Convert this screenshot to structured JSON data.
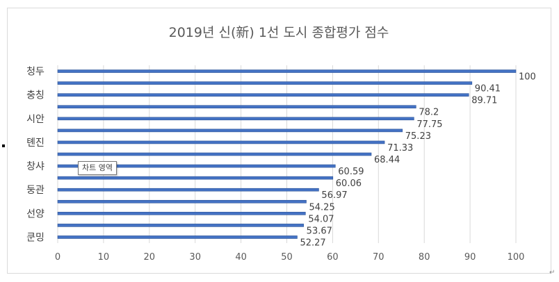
{
  "chart_data": {
    "type": "bar",
    "orientation": "horizontal",
    "title": "2019년 신(新)  1선 도시 종합평가 점수",
    "categories": [
      "청두",
      "",
      "충칭",
      "",
      "시안",
      "",
      "톈진",
      "",
      "창샤",
      "",
      "둥관",
      "",
      "선양",
      "",
      "쿤밍"
    ],
    "values": [
      100,
      90.41,
      89.71,
      78.2,
      77.75,
      75.23,
      71.33,
      68.44,
      60.59,
      60.06,
      56.97,
      54.25,
      54.07,
      53.67,
      52.27
    ],
    "data_labels": [
      "100",
      "90.41",
      "89.71",
      "78.2",
      "77.75",
      "75.23",
      "71.33",
      "68.44",
      "60.59",
      "60.06",
      "56.97",
      "54.25",
      "54.07",
      "53.67",
      "52.27"
    ],
    "x_ticks": [
      "0",
      "10",
      "20",
      "30",
      "40",
      "50",
      "60",
      "70",
      "80",
      "90",
      "100"
    ],
    "xlim": [
      0,
      100
    ],
    "grid": "vertical",
    "legend": "none",
    "bar_color": "#4472c4",
    "bar_edge_color": "#2f5597",
    "grid_color": "#d9d9d9"
  },
  "tooltip": {
    "label": "차트 영역"
  },
  "paragraph_mark": "↵"
}
